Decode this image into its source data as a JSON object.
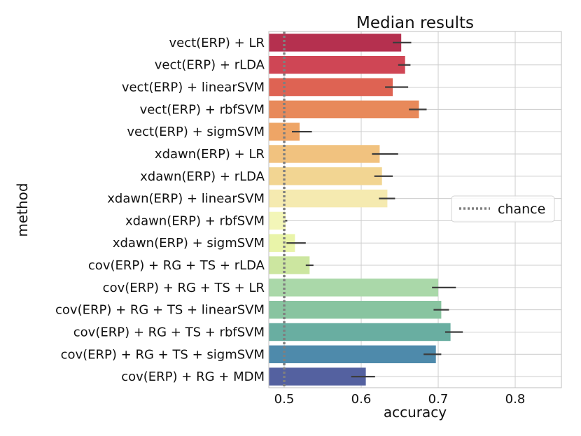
{
  "chart_data": {
    "type": "bar",
    "orientation": "horizontal",
    "title": "Median results",
    "xlabel": "accuracy",
    "ylabel": "method",
    "xlim": [
      0.48,
      0.86
    ],
    "xticks": [
      0.5,
      0.6,
      0.7,
      0.8
    ],
    "xtick_labels": [
      "0.5",
      "0.6",
      "0.7",
      "0.8"
    ],
    "grid": true,
    "categories": [
      "vect(ERP) + LR",
      "vect(ERP) + rLDA",
      "vect(ERP) + linearSVM",
      "vect(ERP) + rbfSVM",
      "vect(ERP) + sigmSVM",
      "xdawn(ERP) + LR",
      "xdawn(ERP) + rLDA",
      "xdawn(ERP) + linearSVM",
      "xdawn(ERP) + rbfSVM",
      "xdawn(ERP) + sigmSVM",
      "cov(ERP) + RG + TS + rLDA",
      "cov(ERP) + RG + TS + LR",
      "cov(ERP) + RG + TS + linearSVM",
      "cov(ERP) + RG + TS + rbfSVM",
      "cov(ERP) + RG + TS + sigmSVM",
      "cov(ERP) + RG + MDM"
    ],
    "values": [
      0.652,
      0.657,
      0.641,
      0.675,
      0.52,
      0.624,
      0.627,
      0.634,
      0.502,
      0.514,
      0.533,
      0.7,
      0.704,
      0.716,
      0.697,
      0.606
    ],
    "ci_low": [
      0.641,
      0.648,
      0.631,
      0.662,
      0.51,
      0.614,
      0.617,
      0.623,
      0.501,
      0.503,
      0.528,
      0.692,
      0.694,
      0.709,
      0.681,
      0.587
    ],
    "ci_high": [
      0.665,
      0.664,
      0.661,
      0.685,
      0.536,
      0.648,
      0.641,
      0.644,
      0.504,
      0.528,
      0.538,
      0.723,
      0.714,
      0.732,
      0.704,
      0.618
    ],
    "colors": [
      "#b5304f",
      "#cf4655",
      "#de6353",
      "#e8895a",
      "#eea566",
      "#f1c27f",
      "#f2d592",
      "#f5eab0",
      "#f3f6b8",
      "#e9f4a9",
      "#cce6a0",
      "#aad8a9",
      "#88c4a0",
      "#69aea1",
      "#4e8aab",
      "#5461a0"
    ],
    "reference_line": {
      "label": "chance",
      "x": 0.5,
      "style": "dotted",
      "color": "#7f7f7f"
    },
    "legend": {
      "position": "right",
      "entries": [
        "chance"
      ]
    }
  }
}
